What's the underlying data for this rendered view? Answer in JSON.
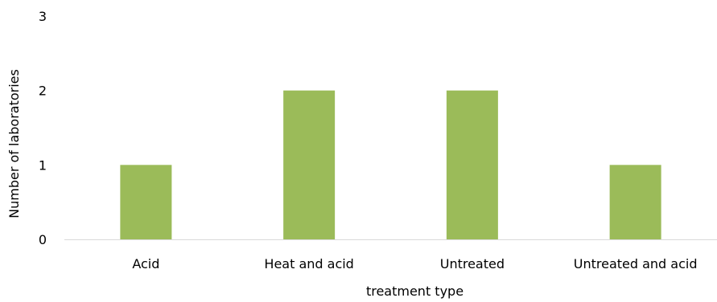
{
  "chart_data": {
    "type": "bar",
    "title": "",
    "xlabel": "treatment type",
    "ylabel": "Number of laboratories",
    "categories": [
      "Acid",
      "Heat and acid",
      "Untreated",
      "Untreated and acid"
    ],
    "values": [
      1,
      2,
      2,
      1
    ],
    "ylim": [
      0,
      3
    ],
    "yticks": [
      "0",
      "1",
      "2",
      "3"
    ],
    "grid": false,
    "legend": "none",
    "colors": {
      "bar": "#9BBB59",
      "axis": "#D9D9D9"
    }
  }
}
